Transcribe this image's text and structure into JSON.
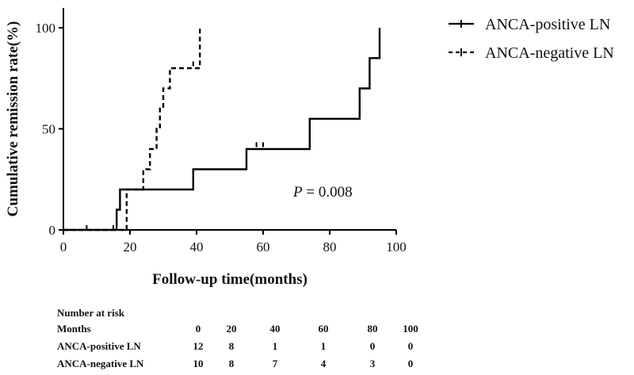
{
  "chart_data": {
    "type": "line",
    "subtype": "kaplan-meier-step",
    "xlabel": "Follow-up time(months)",
    "ylabel": "Cumulative remission rate(%)",
    "xlim": [
      0,
      100
    ],
    "ylim": [
      0,
      100
    ],
    "x_ticks": [
      "0",
      "20",
      "40",
      "60",
      "80",
      "100"
    ],
    "y_ticks": [
      "0",
      "50",
      "100"
    ],
    "legend_position": "top-right",
    "annotation": {
      "italic": "P",
      "rest": " = 0.008"
    },
    "series": [
      {
        "name": "ANCA-positive LN",
        "line_style": "solid",
        "color": "#000000",
        "steps": [
          [
            0,
            0
          ],
          [
            16,
            0
          ],
          [
            16,
            10
          ],
          [
            17,
            10
          ],
          [
            17,
            20
          ],
          [
            39,
            20
          ],
          [
            39,
            30
          ],
          [
            55,
            30
          ],
          [
            55,
            40
          ],
          [
            74,
            40
          ],
          [
            74,
            55
          ],
          [
            89,
            55
          ],
          [
            89,
            70
          ],
          [
            92,
            70
          ],
          [
            92,
            85
          ],
          [
            95,
            85
          ],
          [
            95,
            100
          ]
        ],
        "censored": [
          [
            15,
            0
          ],
          [
            58,
            41
          ],
          [
            60,
            41
          ]
        ]
      },
      {
        "name": "ANCA-negative LN",
        "line_style": "dashed",
        "color": "#000000",
        "steps": [
          [
            0,
            0
          ],
          [
            19,
            0
          ],
          [
            19,
            20
          ],
          [
            24,
            20
          ],
          [
            24,
            30
          ],
          [
            26,
            30
          ],
          [
            26,
            40
          ],
          [
            28,
            40
          ],
          [
            28,
            50
          ],
          [
            29,
            50
          ],
          [
            29,
            60
          ],
          [
            30,
            60
          ],
          [
            30,
            70
          ],
          [
            32,
            70
          ],
          [
            32,
            80
          ],
          [
            38,
            80
          ],
          [
            38,
            80
          ],
          [
            41,
            80
          ],
          [
            41,
            100
          ]
        ],
        "censored": [
          [
            7,
            0
          ],
          [
            39,
            81
          ]
        ]
      }
    ]
  },
  "risk_table": {
    "title": "Number at risk",
    "header": [
      "Months",
      "0",
      "20",
      "40",
      "60",
      "80",
      "100"
    ],
    "rows": [
      [
        "ANCA-positive LN",
        "12",
        "8",
        "1",
        "1",
        "0",
        "0"
      ],
      [
        "ANCA-negative LN",
        "10",
        "8",
        "7",
        "4",
        "3",
        "0"
      ]
    ]
  }
}
